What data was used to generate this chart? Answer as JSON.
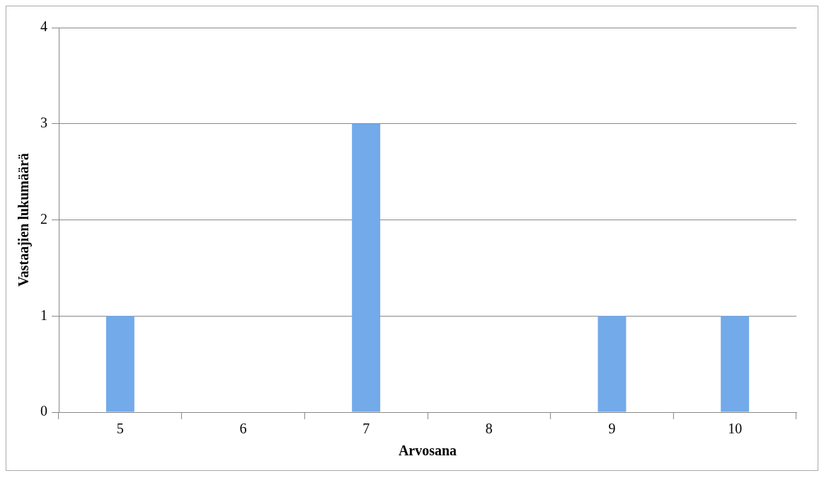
{
  "chart_data": {
    "type": "bar",
    "xlabel": "Arvosana",
    "ylabel": "Vastaajien lukumäärä",
    "categories": [
      "5",
      "6",
      "7",
      "8",
      "9",
      "10"
    ],
    "values": [
      1,
      0,
      3,
      0,
      1,
      1
    ],
    "color": "#72aaea",
    "ylim": [
      0,
      4
    ],
    "yticks": [
      0,
      1,
      2,
      3,
      4
    ],
    "grid": "y"
  }
}
